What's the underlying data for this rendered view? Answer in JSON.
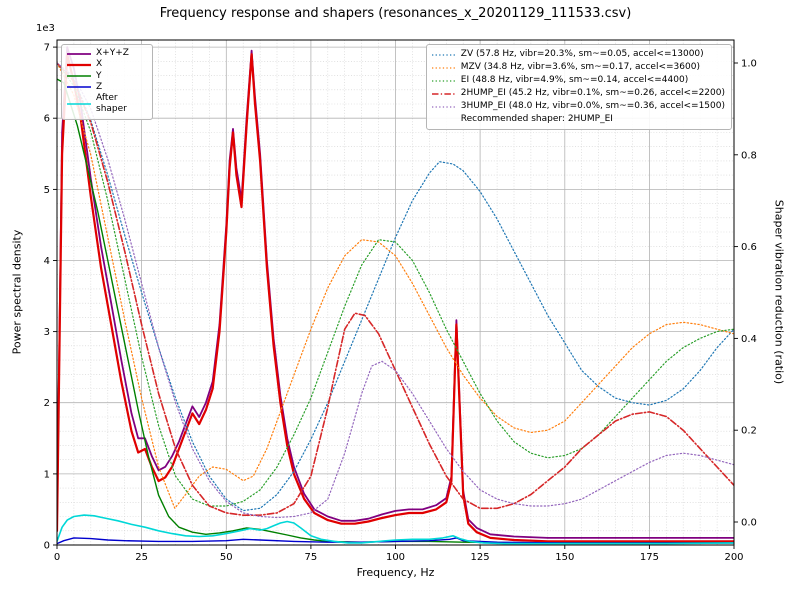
{
  "chart_data": {
    "type": "line",
    "title": "Frequency response and shapers (resonances_x_20201129_111533.csv)",
    "xlabel": "Frequency, Hz",
    "ylabel_left": "Power spectral density",
    "ylabel_right": "Shaper vibration reduction (ratio)",
    "offset_text": "1e3",
    "xlim": [
      0,
      200
    ],
    "ylim_left": [
      0,
      7.1
    ],
    "ylim_right": [
      -0.05,
      1.05
    ],
    "xticks": [
      0,
      25,
      50,
      75,
      100,
      125,
      150,
      175,
      200
    ],
    "yticks_left": [
      0,
      1,
      2,
      3,
      4,
      5,
      6,
      7
    ],
    "yticks_right": [
      0.0,
      0.2,
      0.4,
      0.6,
      0.8,
      1.0
    ],
    "x_minor_step": 5,
    "y_minor_step": 0.2,
    "grid": true,
    "legend_note": "Recommended shaper: 2HUMP_EI",
    "series": [
      {
        "key": "psd-xyz",
        "label": "X+Y+Z",
        "group": "psd",
        "axis": "left",
        "color": "#800080",
        "style": "solid",
        "width": 1.8,
        "x": [
          0,
          1.5,
          3,
          5,
          7,
          10,
          13,
          16,
          19,
          22,
          24,
          26,
          28,
          30,
          32,
          34,
          36,
          38,
          40,
          42,
          44,
          46,
          48,
          50,
          51,
          52,
          53,
          54.5,
          56,
          57.5,
          58.5,
          60,
          62,
          64,
          66,
          68,
          70,
          73,
          76,
          80,
          84,
          88,
          92,
          96,
          100,
          104,
          108,
          112,
          115,
          116.5,
          118,
          119,
          120,
          121.5,
          124,
          128,
          135,
          145,
          160,
          180,
          200
        ],
        "y": [
          0.3,
          5.8,
          7.0,
          6.7,
          6.2,
          5.15,
          4.2,
          3.4,
          2.6,
          1.85,
          1.5,
          1.5,
          1.25,
          1.05,
          1.1,
          1.25,
          1.45,
          1.7,
          1.95,
          1.8,
          2.0,
          2.3,
          3.1,
          4.5,
          5.4,
          5.85,
          5.3,
          4.85,
          6.0,
          6.95,
          6.3,
          5.5,
          4.0,
          2.9,
          2.1,
          1.5,
          1.1,
          0.72,
          0.5,
          0.4,
          0.34,
          0.34,
          0.37,
          0.43,
          0.48,
          0.5,
          0.5,
          0.56,
          0.66,
          0.96,
          3.16,
          1.96,
          0.76,
          0.36,
          0.24,
          0.15,
          0.12,
          0.1,
          0.1,
          0.1,
          0.1
        ]
      },
      {
        "key": "psd-x",
        "label": "X",
        "group": "psd",
        "axis": "left",
        "color": "#e00000",
        "style": "solid",
        "width": 2.2,
        "x": [
          0,
          1.5,
          3,
          5,
          7,
          10,
          13,
          16,
          19,
          22,
          24,
          26,
          28,
          30,
          32,
          34,
          36,
          38,
          40,
          42,
          44,
          46,
          48,
          50,
          51,
          52,
          53,
          54.5,
          56,
          57.5,
          58.5,
          60,
          62,
          64,
          66,
          68,
          70,
          73,
          76,
          80,
          84,
          88,
          92,
          96,
          100,
          104,
          108,
          112,
          115,
          116.5,
          118,
          119,
          120,
          121.5,
          124,
          128,
          135,
          145,
          160,
          180,
          200
        ],
        "y": [
          0.2,
          5.5,
          6.9,
          6.5,
          6.0,
          4.9,
          3.9,
          3.1,
          2.3,
          1.6,
          1.3,
          1.35,
          1.1,
          0.9,
          0.95,
          1.1,
          1.35,
          1.6,
          1.85,
          1.7,
          1.9,
          2.2,
          3.0,
          4.4,
          5.3,
          5.8,
          5.2,
          4.75,
          5.9,
          6.9,
          6.2,
          5.4,
          3.9,
          2.8,
          2.0,
          1.4,
          1.0,
          0.65,
          0.45,
          0.35,
          0.3,
          0.3,
          0.33,
          0.38,
          0.42,
          0.45,
          0.45,
          0.5,
          0.6,
          0.9,
          3.1,
          1.9,
          0.7,
          0.3,
          0.18,
          0.1,
          0.07,
          0.05,
          0.05,
          0.05,
          0.05
        ]
      },
      {
        "key": "psd-y",
        "label": "Y",
        "group": "psd",
        "axis": "left",
        "color": "#008000",
        "style": "solid",
        "width": 1.4,
        "x": [
          0,
          2,
          4,
          6,
          9,
          12,
          15,
          18,
          21,
          24,
          27,
          30,
          33,
          36,
          40,
          44,
          48,
          52,
          56,
          60,
          64,
          68,
          72,
          76,
          80,
          90,
          100,
          110,
          120,
          140,
          170,
          200
        ],
        "y": [
          6.55,
          6.5,
          6.2,
          5.9,
          5.3,
          4.7,
          4.0,
          3.3,
          2.6,
          1.9,
          1.25,
          0.7,
          0.4,
          0.25,
          0.18,
          0.15,
          0.17,
          0.2,
          0.24,
          0.22,
          0.18,
          0.14,
          0.1,
          0.07,
          0.05,
          0.04,
          0.05,
          0.05,
          0.04,
          0.03,
          0.03,
          0.03
        ]
      },
      {
        "key": "psd-z",
        "label": "Z",
        "group": "psd",
        "axis": "left",
        "color": "#0000cd",
        "style": "solid",
        "width": 1.4,
        "x": [
          0,
          2,
          5,
          10,
          15,
          20,
          30,
          40,
          50,
          55,
          60,
          70,
          80,
          90,
          100,
          110,
          116,
          118,
          120,
          130,
          150,
          175,
          200
        ],
        "y": [
          0.02,
          0.06,
          0.1,
          0.09,
          0.07,
          0.06,
          0.05,
          0.05,
          0.06,
          0.08,
          0.07,
          0.05,
          0.04,
          0.04,
          0.05,
          0.06,
          0.08,
          0.1,
          0.06,
          0.04,
          0.03,
          0.03,
          0.03
        ]
      },
      {
        "key": "psd-after-shaper",
        "label": "After shaper",
        "group": "psd",
        "axis": "left",
        "color": "#00d7d7",
        "style": "solid",
        "width": 1.6,
        "x": [
          0,
          1.5,
          3,
          5,
          8,
          11,
          14,
          18,
          22,
          26,
          30,
          34,
          38,
          42,
          46,
          50,
          54,
          57,
          60,
          62,
          64,
          66,
          68,
          70,
          72,
          75,
          78,
          82,
          86,
          90,
          95,
          100,
          105,
          110,
          114,
          117,
          119,
          122,
          126,
          132,
          140,
          150,
          165,
          180,
          200
        ],
        "y": [
          0.05,
          0.25,
          0.35,
          0.4,
          0.42,
          0.41,
          0.38,
          0.34,
          0.29,
          0.25,
          0.2,
          0.16,
          0.13,
          0.12,
          0.13,
          0.16,
          0.2,
          0.23,
          0.21,
          0.23,
          0.27,
          0.31,
          0.33,
          0.31,
          0.24,
          0.13,
          0.08,
          0.05,
          0.03,
          0.03,
          0.05,
          0.07,
          0.08,
          0.08,
          0.1,
          0.13,
          0.09,
          0.05,
          0.03,
          0.02,
          0.02,
          0.02,
          0.02,
          0.02,
          0.03
        ]
      },
      {
        "key": "shaper-zv",
        "label": "ZV (57.8 Hz, vibr=20.3%, sm~=0.05, accel<=13000)",
        "group": "shaper",
        "axis": "right",
        "color": "#1f77b4",
        "style": "dotted",
        "width": 1.2,
        "x": [
          0,
          5,
          10,
          15,
          20,
          25,
          30,
          35,
          40,
          45,
          50,
          55,
          60,
          65,
          70,
          75,
          80,
          85,
          90,
          95,
          100,
          105,
          110,
          113,
          117,
          120,
          125,
          130,
          135,
          140,
          145,
          150,
          155,
          160,
          165,
          170,
          175,
          180,
          185,
          190,
          195,
          200
        ],
        "y": [
          1.0,
          0.965,
          0.875,
          0.755,
          0.625,
          0.5,
          0.38,
          0.27,
          0.175,
          0.1,
          0.05,
          0.025,
          0.03,
          0.06,
          0.11,
          0.18,
          0.26,
          0.35,
          0.44,
          0.53,
          0.62,
          0.7,
          0.76,
          0.785,
          0.78,
          0.765,
          0.72,
          0.66,
          0.59,
          0.52,
          0.45,
          0.39,
          0.33,
          0.295,
          0.27,
          0.26,
          0.255,
          0.265,
          0.29,
          0.33,
          0.38,
          0.42
        ]
      },
      {
        "key": "shaper-mzv",
        "label": "MZV (34.8 Hz, vibr=3.6%, sm~=0.17, accel<=3600)",
        "group": "shaper",
        "axis": "right",
        "color": "#ff7f0e",
        "style": "dotted",
        "width": 1.2,
        "x": [
          0,
          5,
          10,
          15,
          20,
          25,
          30,
          34.8,
          38,
          42,
          46,
          50,
          55,
          58,
          62,
          66,
          70,
          75,
          80,
          85,
          90,
          95,
          100,
          105,
          110,
          115,
          120,
          125,
          130,
          135,
          140,
          145,
          150,
          155,
          160,
          165,
          170,
          175,
          180,
          185,
          190,
          195,
          200
        ],
        "y": [
          1.0,
          0.93,
          0.8,
          0.62,
          0.44,
          0.27,
          0.12,
          0.03,
          0.06,
          0.1,
          0.12,
          0.115,
          0.09,
          0.1,
          0.16,
          0.24,
          0.32,
          0.42,
          0.51,
          0.58,
          0.615,
          0.61,
          0.58,
          0.52,
          0.45,
          0.38,
          0.32,
          0.27,
          0.23,
          0.205,
          0.195,
          0.2,
          0.22,
          0.26,
          0.3,
          0.34,
          0.38,
          0.41,
          0.43,
          0.435,
          0.43,
          0.42,
          0.41
        ]
      },
      {
        "key": "shaper-ei",
        "label": "EI (48.8 Hz, vibr=4.9%, sm~=0.14, accel<=4400)",
        "group": "shaper",
        "axis": "right",
        "color": "#2ca02c",
        "style": "dotted",
        "width": 1.2,
        "x": [
          0,
          5,
          10,
          15,
          20,
          25,
          30,
          35,
          40,
          45,
          50,
          55,
          60,
          65,
          70,
          75,
          80,
          85,
          90,
          95,
          100,
          105,
          110,
          115,
          120,
          125,
          130,
          135,
          140,
          145,
          150,
          155,
          160,
          165,
          170,
          175,
          180,
          185,
          190,
          195,
          200
        ],
        "y": [
          1.0,
          0.95,
          0.85,
          0.7,
          0.53,
          0.36,
          0.21,
          0.1,
          0.05,
          0.035,
          0.035,
          0.045,
          0.07,
          0.12,
          0.19,
          0.27,
          0.37,
          0.47,
          0.56,
          0.615,
          0.61,
          0.57,
          0.5,
          0.42,
          0.35,
          0.28,
          0.22,
          0.175,
          0.15,
          0.14,
          0.145,
          0.16,
          0.19,
          0.23,
          0.27,
          0.31,
          0.35,
          0.38,
          0.4,
          0.415,
          0.42
        ]
      },
      {
        "key": "shaper-2hump-ei",
        "label": "2HUMP_EI (45.2 Hz, vibr=0.1%, sm~=0.26, accel<=2200)",
        "group": "shaper",
        "axis": "right",
        "color": "#d62728",
        "style": "dashdot",
        "width": 1.6,
        "x": [
          0,
          5,
          10,
          15,
          20,
          25,
          30,
          35,
          40,
          45,
          50,
          55,
          60,
          65,
          70,
          75,
          80,
          82,
          85,
          88,
          91,
          95,
          100,
          105,
          110,
          115,
          120,
          125,
          130,
          135,
          140,
          145,
          150,
          155,
          160,
          165,
          170,
          175,
          180,
          185,
          190,
          195,
          200
        ],
        "y": [
          1.0,
          0.96,
          0.87,
          0.74,
          0.59,
          0.43,
          0.28,
          0.16,
          0.08,
          0.035,
          0.02,
          0.015,
          0.015,
          0.02,
          0.04,
          0.1,
          0.25,
          0.32,
          0.42,
          0.455,
          0.45,
          0.41,
          0.33,
          0.25,
          0.17,
          0.1,
          0.05,
          0.03,
          0.03,
          0.04,
          0.06,
          0.09,
          0.12,
          0.16,
          0.19,
          0.22,
          0.235,
          0.24,
          0.23,
          0.2,
          0.16,
          0.12,
          0.08
        ]
      },
      {
        "key": "shaper-3hump-ei",
        "label": "3HUMP_EI (48.0 Hz, vibr=0.0%, sm~=0.36, accel<=1500)",
        "group": "shaper",
        "axis": "right",
        "color": "#9467bd",
        "style": "dotted",
        "width": 1.2,
        "x": [
          0,
          5,
          10,
          15,
          20,
          25,
          30,
          35,
          40,
          45,
          50,
          55,
          60,
          65,
          70,
          75,
          80,
          85,
          90,
          93,
          96,
          100,
          105,
          110,
          115,
          120,
          125,
          130,
          135,
          140,
          145,
          150,
          155,
          160,
          165,
          170,
          175,
          180,
          185,
          190,
          195,
          200
        ],
        "y": [
          1.0,
          0.97,
          0.9,
          0.79,
          0.66,
          0.52,
          0.38,
          0.26,
          0.16,
          0.09,
          0.045,
          0.02,
          0.012,
          0.01,
          0.012,
          0.02,
          0.05,
          0.15,
          0.28,
          0.34,
          0.35,
          0.33,
          0.28,
          0.22,
          0.16,
          0.11,
          0.07,
          0.05,
          0.04,
          0.035,
          0.035,
          0.04,
          0.05,
          0.07,
          0.09,
          0.11,
          0.13,
          0.145,
          0.15,
          0.145,
          0.135,
          0.125
        ]
      }
    ]
  }
}
